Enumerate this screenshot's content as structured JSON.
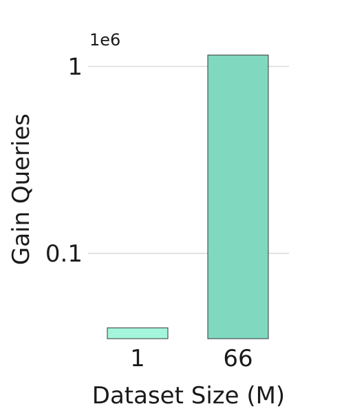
{
  "chart_data": {
    "type": "bar",
    "scale": "log",
    "exponent_label": "1e6",
    "categories": [
      "1",
      "66"
    ],
    "values": [
      0.04,
      1.15
    ],
    "colors": [
      "#a3f5dc",
      "#80d9bf"
    ],
    "ylim": [
      0.035,
      1.2
    ],
    "y_ticks": [
      {
        "value": 1,
        "label": "1"
      },
      {
        "value": 0.1,
        "label": "0.1"
      }
    ],
    "xlabel": "Dataset Size (M)",
    "ylabel": "Gain Queries",
    "grid": true
  }
}
